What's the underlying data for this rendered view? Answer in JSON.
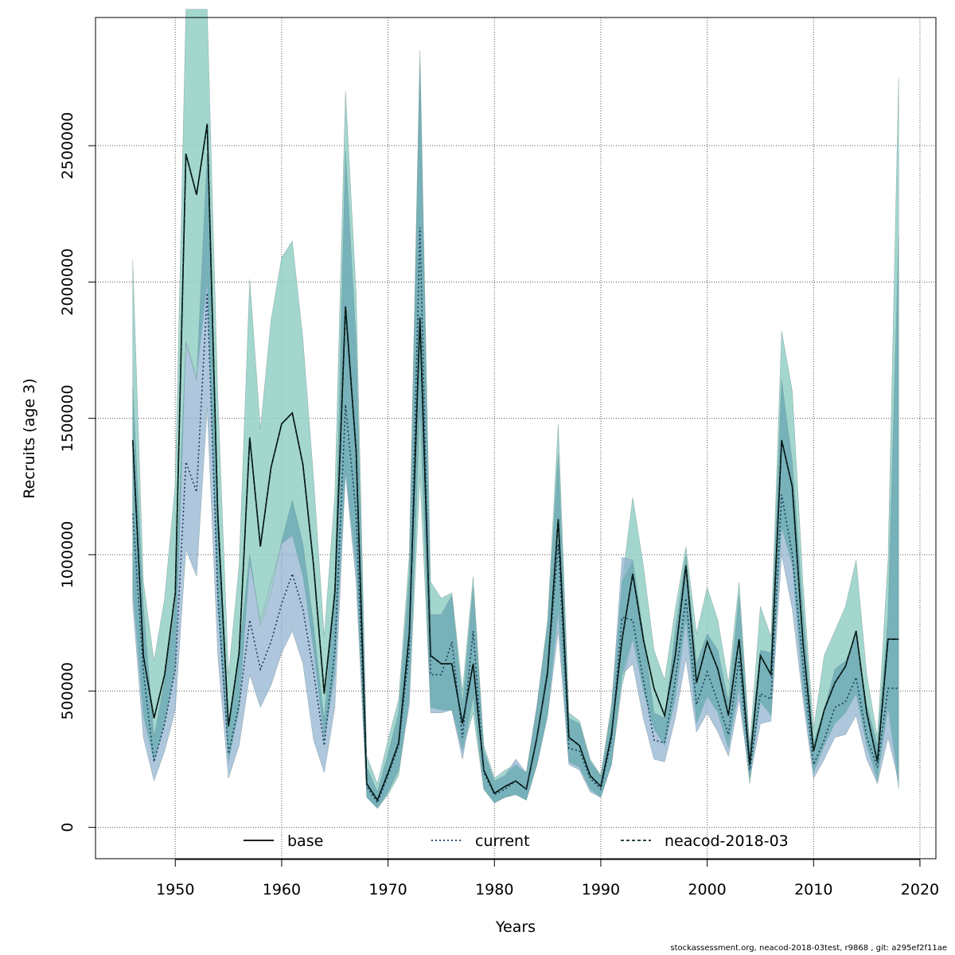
{
  "footer": "stockassessment.org, neacod-2018-03test, r9868 , git: a295ef2f11ae",
  "chart_data": {
    "type": "line",
    "title": "",
    "xlabel": "Years",
    "ylabel": "Recruits (age 3)",
    "xlim": [
      1942.5,
      2021.5
    ],
    "ylim": [
      -115000,
      2970000
    ],
    "xticks": [
      1950,
      1960,
      1970,
      1980,
      1990,
      2000,
      2010,
      2020
    ],
    "yticks": [
      0,
      500000,
      1000000,
      1500000,
      2000000,
      2500000
    ],
    "grid": true,
    "legend_position": "bottom",
    "colors": {
      "band_base": "#93d0c6",
      "band_current": "#8fb2d0",
      "band_overlap": "#5ea8a8",
      "line": "#000000"
    },
    "x": [
      1946,
      1947,
      1948,
      1949,
      1950,
      1951,
      1952,
      1953,
      1954,
      1955,
      1956,
      1957,
      1958,
      1959,
      1960,
      1961,
      1962,
      1963,
      1964,
      1965,
      1966,
      1967,
      1968,
      1969,
      1970,
      1971,
      1972,
      1973,
      1974,
      1975,
      1976,
      1977,
      1978,
      1979,
      1980,
      1981,
      1982,
      1983,
      1984,
      1985,
      1986,
      1987,
      1988,
      1989,
      1990,
      1991,
      1992,
      1993,
      1994,
      1995,
      1996,
      1997,
      1998,
      1999,
      2000,
      2001,
      2002,
      2003,
      2004,
      2005,
      2006,
      2007,
      2008,
      2009,
      2010,
      2011,
      2012,
      2013,
      2014,
      2015,
      2016,
      2017,
      2018
    ],
    "series": [
      {
        "name": "base",
        "line_style": "solid",
        "values": [
          1420000,
          630000,
          400000,
          560000,
          860000,
          2470000,
          2320000,
          2580000,
          1140000,
          370000,
          640000,
          1430000,
          1030000,
          1320000,
          1480000,
          1520000,
          1330000,
          960000,
          490000,
          860000,
          1910000,
          1380000,
          160000,
          100000,
          200000,
          310000,
          710000,
          1870000,
          630000,
          600000,
          600000,
          380000,
          600000,
          210000,
          125000,
          150000,
          170000,
          140000,
          330000,
          570000,
          1130000,
          330000,
          300000,
          190000,
          150000,
          340000,
          690000,
          930000,
          690000,
          510000,
          410000,
          630000,
          960000,
          530000,
          680000,
          580000,
          410000,
          690000,
          230000,
          630000,
          560000,
          1420000,
          1250000,
          680000,
          280000,
          430000,
          530000,
          590000,
          720000,
          420000,
          240000,
          690000,
          690000
        ],
        "upper": [
          2080000,
          900000,
          610000,
          840000,
          1260000,
          3000000,
          3000000,
          3000000,
          1580000,
          560000,
          960000,
          2010000,
          1460000,
          1860000,
          2090000,
          2150000,
          1790000,
          1280000,
          700000,
          1220000,
          2700000,
          1960000,
          260000,
          160000,
          320000,
          470000,
          1000000,
          2850000,
          900000,
          840000,
          860000,
          500000,
          920000,
          300000,
          180000,
          210000,
          230000,
          200000,
          450000,
          760000,
          1480000,
          420000,
          390000,
          250000,
          190000,
          450000,
          900000,
          1210000,
          960000,
          650000,
          540000,
          800000,
          1030000,
          710000,
          880000,
          760000,
          530000,
          900000,
          300000,
          810000,
          700000,
          1820000,
          1600000,
          900000,
          360000,
          630000,
          720000,
          810000,
          980000,
          560000,
          330000,
          980000,
          2750000
        ],
        "lower": [
          870000,
          410000,
          240000,
          380000,
          590000,
          1780000,
          1650000,
          2000000,
          800000,
          240000,
          430000,
          970000,
          760000,
          900000,
          1040000,
          1070000,
          920000,
          650000,
          320000,
          560000,
          1310000,
          950000,
          110000,
          70000,
          120000,
          190000,
          470000,
          1290000,
          440000,
          430000,
          430000,
          280000,
          420000,
          140000,
          90000,
          110000,
          120000,
          100000,
          230000,
          410000,
          790000,
          240000,
          220000,
          140000,
          110000,
          230000,
          520000,
          690000,
          500000,
          360000,
          300000,
          470000,
          760000,
          380000,
          480000,
          420000,
          290000,
          510000,
          160000,
          460000,
          410000,
          1100000,
          960000,
          500000,
          200000,
          300000,
          380000,
          420000,
          490000,
          300000,
          170000,
          440000,
          140000
        ]
      },
      {
        "name": "current",
        "line_style": "dotted",
        "values": [
          1150000,
          570000,
          240000,
          380000,
          580000,
          1340000,
          1230000,
          1960000,
          850000,
          270000,
          450000,
          760000,
          580000,
          680000,
          820000,
          930000,
          800000,
          570000,
          300000,
          650000,
          1550000,
          1150000,
          150000,
          90000,
          190000,
          300000,
          650000,
          2200000,
          560000,
          560000,
          680000,
          330000,
          720000,
          200000,
          120000,
          140000,
          170000,
          140000,
          330000,
          560000,
          1040000,
          290000,
          280000,
          180000,
          140000,
          320000,
          770000,
          760000,
          540000,
          320000,
          310000,
          540000,
          840000,
          450000,
          570000,
          460000,
          340000,
          620000,
          210000,
          490000,
          470000,
          1220000,
          1000000,
          600000,
          230000,
          320000,
          440000,
          460000,
          550000,
          330000,
          220000,
          510000,
          510000
        ],
        "upper": [
          1620000,
          810000,
          330000,
          540000,
          820000,
          1780000,
          1640000,
          2470000,
          1200000,
          380000,
          640000,
          1000000,
          740000,
          860000,
          1050000,
          1200000,
          1040000,
          740000,
          390000,
          900000,
          2480000,
          1780000,
          220000,
          130000,
          270000,
          420000,
          930000,
          2800000,
          780000,
          780000,
          850000,
          450000,
          880000,
          280000,
          170000,
          190000,
          250000,
          200000,
          440000,
          740000,
          1370000,
          400000,
          380000,
          240000,
          190000,
          430000,
          990000,
          980000,
          710000,
          420000,
          400000,
          720000,
          1000000,
          600000,
          710000,
          650000,
          460000,
          850000,
          280000,
          650000,
          640000,
          1640000,
          1340000,
          800000,
          310000,
          430000,
          580000,
          610000,
          700000,
          450000,
          300000,
          770000,
          2170000
        ],
        "lower": [
          820000,
          330000,
          170000,
          280000,
          430000,
          1020000,
          920000,
          1540000,
          630000,
          180000,
          300000,
          560000,
          440000,
          520000,
          640000,
          720000,
          600000,
          320000,
          200000,
          440000,
          1300000,
          900000,
          110000,
          70000,
          130000,
          210000,
          450000,
          1550000,
          420000,
          420000,
          430000,
          250000,
          480000,
          140000,
          90000,
          110000,
          120000,
          100000,
          230000,
          410000,
          720000,
          230000,
          210000,
          130000,
          110000,
          230000,
          560000,
          600000,
          400000,
          250000,
          240000,
          400000,
          620000,
          350000,
          420000,
          350000,
          260000,
          470000,
          180000,
          380000,
          390000,
          1000000,
          800000,
          470000,
          180000,
          250000,
          330000,
          340000,
          410000,
          250000,
          160000,
          330000,
          170000
        ]
      },
      {
        "name": "neacod-2018-03",
        "line_style": "dashed",
        "values": [
          1420000,
          630000,
          400000,
          560000,
          860000,
          2470000,
          2320000,
          2580000,
          1140000,
          370000,
          640000,
          1430000,
          1030000,
          1320000,
          1480000,
          1520000,
          1330000,
          960000,
          490000,
          860000,
          1910000,
          1380000,
          160000,
          100000,
          200000,
          310000,
          710000,
          1870000,
          630000,
          600000,
          600000,
          380000,
          600000,
          210000,
          125000,
          150000,
          170000,
          140000,
          330000,
          570000,
          1130000,
          330000,
          300000,
          190000,
          150000,
          340000,
          690000,
          930000,
          690000,
          510000,
          410000,
          630000,
          960000,
          530000,
          680000,
          580000,
          410000,
          690000,
          230000,
          630000,
          560000,
          1420000,
          1250000,
          680000,
          280000,
          430000,
          530000,
          590000,
          720000,
          420000,
          240000,
          690000,
          690000
        ]
      }
    ]
  }
}
